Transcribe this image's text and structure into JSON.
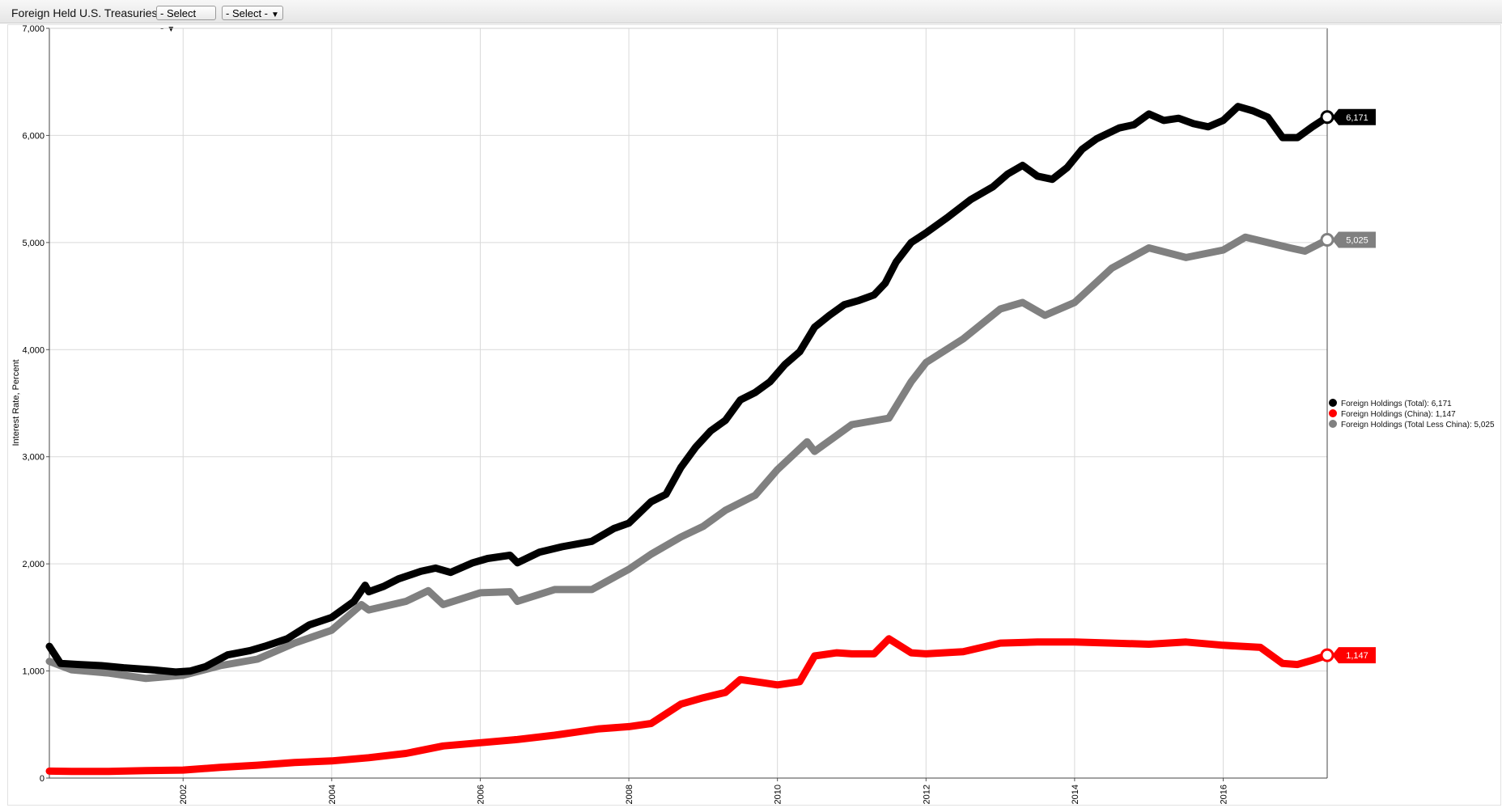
{
  "toolbar": {
    "title": "Foreign Held U.S. Treasuries",
    "select1": "- Select -",
    "select2": "- Select -"
  },
  "chart_data": {
    "type": "line",
    "ylabel": "Interest Rate, Percent",
    "xlabel": "",
    "ylim": [
      0,
      7000
    ],
    "xlim": [
      2000.2,
      2017.4
    ],
    "y_ticks": [
      0,
      1000,
      2000,
      3000,
      4000,
      5000,
      6000,
      7000
    ],
    "y_tick_labels": [
      "0",
      "1,000",
      "2,000",
      "3,000",
      "4,000",
      "5,000",
      "6,000",
      "7,000"
    ],
    "x_ticks": [
      2002,
      2004,
      2006,
      2008,
      2010,
      2012,
      2014,
      2016
    ],
    "x_tick_labels": [
      "2002",
      "2004",
      "2006",
      "2008",
      "2010",
      "2012",
      "2014",
      "2016"
    ],
    "grid": true,
    "legend_position": "right",
    "series": [
      {
        "name": "Foreign Holdings (Total)",
        "color": "#000000",
        "last_label": "6,171",
        "legend_label": "Foreign Holdings (Total): 6,171",
        "points": [
          [
            2000.2,
            1230
          ],
          [
            2000.35,
            1070
          ],
          [
            2000.6,
            1060
          ],
          [
            2000.9,
            1050
          ],
          [
            2001.2,
            1030
          ],
          [
            2001.6,
            1010
          ],
          [
            2001.9,
            990
          ],
          [
            2002.1,
            1000
          ],
          [
            2002.3,
            1040
          ],
          [
            2002.6,
            1150
          ],
          [
            2002.9,
            1190
          ],
          [
            2003.1,
            1230
          ],
          [
            2003.4,
            1300
          ],
          [
            2003.7,
            1430
          ],
          [
            2004.0,
            1500
          ],
          [
            2004.3,
            1650
          ],
          [
            2004.45,
            1800
          ],
          [
            2004.5,
            1740
          ],
          [
            2004.7,
            1790
          ],
          [
            2004.9,
            1860
          ],
          [
            2005.2,
            1930
          ],
          [
            2005.4,
            1960
          ],
          [
            2005.6,
            1920
          ],
          [
            2005.9,
            2010
          ],
          [
            2006.1,
            2050
          ],
          [
            2006.4,
            2080
          ],
          [
            2006.5,
            2010
          ],
          [
            2006.8,
            2110
          ],
          [
            2007.1,
            2160
          ],
          [
            2007.5,
            2210
          ],
          [
            2007.8,
            2330
          ],
          [
            2008.0,
            2380
          ],
          [
            2008.3,
            2580
          ],
          [
            2008.5,
            2650
          ],
          [
            2008.7,
            2900
          ],
          [
            2008.9,
            3090
          ],
          [
            2009.1,
            3240
          ],
          [
            2009.3,
            3340
          ],
          [
            2009.5,
            3530
          ],
          [
            2009.7,
            3600
          ],
          [
            2009.9,
            3700
          ],
          [
            2010.1,
            3860
          ],
          [
            2010.3,
            3980
          ],
          [
            2010.5,
            4210
          ],
          [
            2010.7,
            4320
          ],
          [
            2010.9,
            4420
          ],
          [
            2011.1,
            4460
          ],
          [
            2011.3,
            4510
          ],
          [
            2011.45,
            4620
          ],
          [
            2011.6,
            4820
          ],
          [
            2011.8,
            5000
          ],
          [
            2012.0,
            5090
          ],
          [
            2012.3,
            5240
          ],
          [
            2012.6,
            5400
          ],
          [
            2012.9,
            5520
          ],
          [
            2013.1,
            5640
          ],
          [
            2013.3,
            5720
          ],
          [
            2013.5,
            5620
          ],
          [
            2013.7,
            5590
          ],
          [
            2013.9,
            5700
          ],
          [
            2014.1,
            5870
          ],
          [
            2014.3,
            5970
          ],
          [
            2014.6,
            6070
          ],
          [
            2014.8,
            6100
          ],
          [
            2015.0,
            6200
          ],
          [
            2015.2,
            6140
          ],
          [
            2015.4,
            6160
          ],
          [
            2015.6,
            6110
          ],
          [
            2015.8,
            6080
          ],
          [
            2016.0,
            6140
          ],
          [
            2016.2,
            6270
          ],
          [
            2016.4,
            6230
          ],
          [
            2016.6,
            6170
          ],
          [
            2016.8,
            5980
          ],
          [
            2017.0,
            5980
          ],
          [
            2017.2,
            6080
          ],
          [
            2017.4,
            6171
          ]
        ]
      },
      {
        "name": "Foreign Holdings (China)",
        "color": "#ff0000",
        "last_label": "1,147",
        "legend_label": "Foreign Holdings (China): 1,147",
        "points": [
          [
            2000.2,
            65
          ],
          [
            2000.5,
            62
          ],
          [
            2001.0,
            62
          ],
          [
            2001.5,
            70
          ],
          [
            2002.0,
            75
          ],
          [
            2002.5,
            100
          ],
          [
            2003.0,
            120
          ],
          [
            2003.5,
            145
          ],
          [
            2004.0,
            160
          ],
          [
            2004.5,
            190
          ],
          [
            2005.0,
            230
          ],
          [
            2005.5,
            300
          ],
          [
            2006.0,
            330
          ],
          [
            2006.5,
            360
          ],
          [
            2007.0,
            400
          ],
          [
            2007.3,
            430
          ],
          [
            2007.6,
            460
          ],
          [
            2008.0,
            480
          ],
          [
            2008.3,
            510
          ],
          [
            2008.7,
            690
          ],
          [
            2009.0,
            750
          ],
          [
            2009.3,
            800
          ],
          [
            2009.5,
            920
          ],
          [
            2009.8,
            890
          ],
          [
            2010.0,
            870
          ],
          [
            2010.3,
            900
          ],
          [
            2010.5,
            1140
          ],
          [
            2010.8,
            1170
          ],
          [
            2011.0,
            1160
          ],
          [
            2011.3,
            1160
          ],
          [
            2011.5,
            1300
          ],
          [
            2011.8,
            1170
          ],
          [
            2012.0,
            1160
          ],
          [
            2012.5,
            1180
          ],
          [
            2013.0,
            1260
          ],
          [
            2013.5,
            1270
          ],
          [
            2014.0,
            1270
          ],
          [
            2014.5,
            1260
          ],
          [
            2015.0,
            1250
          ],
          [
            2015.5,
            1270
          ],
          [
            2016.0,
            1240
          ],
          [
            2016.5,
            1220
          ],
          [
            2016.8,
            1070
          ],
          [
            2017.0,
            1060
          ],
          [
            2017.2,
            1100
          ],
          [
            2017.4,
            1147
          ]
        ]
      },
      {
        "name": "Foreign Holdings (Total Less China)",
        "color": "#808080",
        "last_label": "5,025",
        "legend_label": "Foreign Holdings (Total Less China): 5,025",
        "points": [
          [
            2000.2,
            1090
          ],
          [
            2000.5,
            1010
          ],
          [
            2001.0,
            980
          ],
          [
            2001.5,
            930
          ],
          [
            2002.0,
            960
          ],
          [
            2002.5,
            1050
          ],
          [
            2003.0,
            1110
          ],
          [
            2003.5,
            1260
          ],
          [
            2004.0,
            1380
          ],
          [
            2004.4,
            1620
          ],
          [
            2004.5,
            1570
          ],
          [
            2005.0,
            1650
          ],
          [
            2005.3,
            1750
          ],
          [
            2005.5,
            1620
          ],
          [
            2006.0,
            1730
          ],
          [
            2006.4,
            1740
          ],
          [
            2006.5,
            1650
          ],
          [
            2007.0,
            1760
          ],
          [
            2007.5,
            1760
          ],
          [
            2008.0,
            1950
          ],
          [
            2008.3,
            2090
          ],
          [
            2008.7,
            2250
          ],
          [
            2009.0,
            2350
          ],
          [
            2009.3,
            2500
          ],
          [
            2009.7,
            2640
          ],
          [
            2010.0,
            2880
          ],
          [
            2010.4,
            3140
          ],
          [
            2010.5,
            3050
          ],
          [
            2011.0,
            3300
          ],
          [
            2011.5,
            3360
          ],
          [
            2011.8,
            3700
          ],
          [
            2012.0,
            3880
          ],
          [
            2012.5,
            4100
          ],
          [
            2013.0,
            4380
          ],
          [
            2013.3,
            4440
          ],
          [
            2013.6,
            4320
          ],
          [
            2014.0,
            4440
          ],
          [
            2014.5,
            4760
          ],
          [
            2015.0,
            4950
          ],
          [
            2015.5,
            4860
          ],
          [
            2016.0,
            4930
          ],
          [
            2016.3,
            5050
          ],
          [
            2016.6,
            5000
          ],
          [
            2016.9,
            4950
          ],
          [
            2017.1,
            4920
          ],
          [
            2017.4,
            5025
          ]
        ]
      }
    ]
  }
}
